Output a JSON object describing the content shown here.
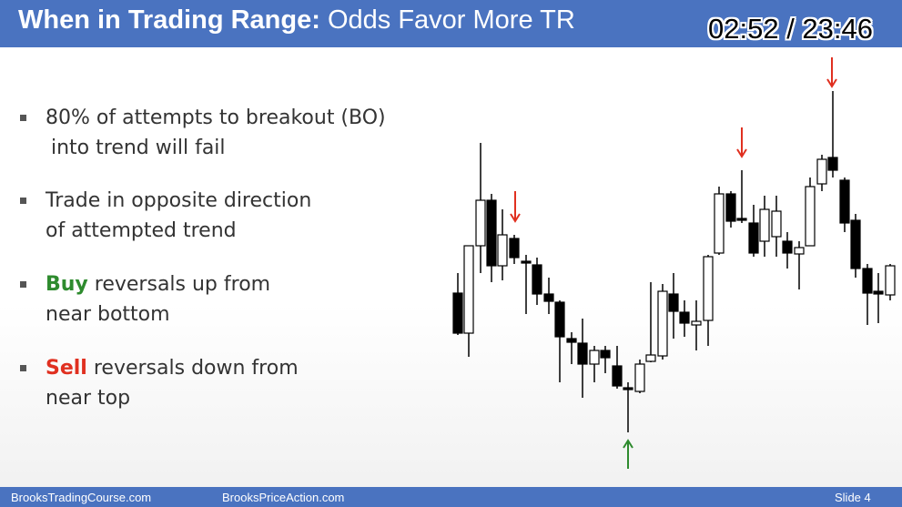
{
  "header": {
    "title_bold": "When in Trading Range:",
    "title_rest": "Odds Favor More TR",
    "timer": "02:52 / 23:46"
  },
  "bullets": [
    {
      "lines": [
        "80% of attempts to breakout (BO)",
        "into trend will fail"
      ]
    },
    {
      "lines": [
        "Trade in opposite direction",
        "of attempted trend"
      ]
    },
    {
      "emphasis": "Buy",
      "lines": [
        "reversals up from",
        "near bottom"
      ]
    },
    {
      "emphasis": "Sell",
      "lines": [
        "reversals down from",
        "near top"
      ]
    }
  ],
  "footer": {
    "left": "BrooksTradingCourse.com",
    "middle": "BrooksPriceAction.com",
    "slide": "Slide  4"
  }
}
